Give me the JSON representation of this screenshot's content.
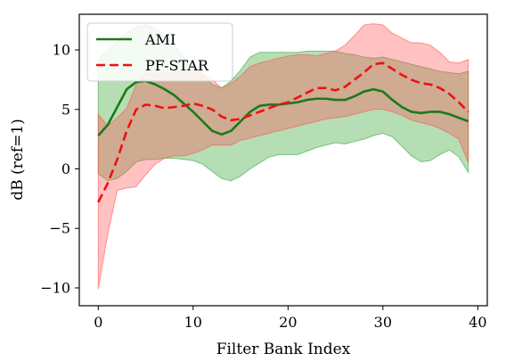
{
  "chart_data": {
    "type": "line",
    "xlabel": "Filter Bank Index",
    "ylabel": "dB (ref=1)",
    "xlim": [
      -2,
      41
    ],
    "ylim": [
      -11.5,
      13
    ],
    "xticks": [
      0,
      10,
      20,
      30,
      40
    ],
    "yticks": [
      -10,
      -5,
      0,
      5,
      10
    ],
    "grid": false,
    "legend_position": "top-left",
    "series": [
      {
        "name": "AMI",
        "color": "#1a7a1a",
        "fill_color": "#2ca02c",
        "style": "solid",
        "x": [
          0,
          1,
          2,
          3,
          4,
          5,
          6,
          7,
          8,
          9,
          10,
          11,
          12,
          13,
          14,
          15,
          16,
          17,
          18,
          19,
          20,
          21,
          22,
          23,
          24,
          25,
          26,
          27,
          28,
          29,
          30,
          31,
          32,
          33,
          34,
          35,
          36,
          37,
          38,
          39
        ],
        "mean": [
          2.8,
          3.7,
          5.2,
          6.7,
          7.3,
          7.4,
          7.1,
          6.7,
          6.2,
          5.5,
          4.8,
          4.0,
          3.2,
          2.9,
          3.2,
          4.0,
          4.8,
          5.3,
          5.4,
          5.4,
          5.5,
          5.6,
          5.8,
          5.9,
          5.9,
          5.8,
          5.8,
          6.1,
          6.5,
          6.7,
          6.5,
          5.8,
          5.2,
          4.8,
          4.7,
          4.8,
          4.8,
          4.6,
          4.3,
          4.0
        ],
        "upper": [
          9.2,
          10.0,
          10.7,
          11.4,
          11.9,
          12.1,
          11.8,
          11.1,
          10.4,
          9.4,
          8.5,
          7.9,
          7.1,
          6.8,
          7.4,
          8.3,
          9.4,
          9.8,
          9.8,
          9.8,
          9.8,
          9.8,
          9.9,
          9.9,
          9.9,
          9.9,
          9.7,
          9.6,
          9.4,
          9.3,
          9.4,
          9.2,
          9.0,
          8.8,
          8.6,
          8.4,
          8.2,
          8.1,
          8.0,
          8.2
        ],
        "lower": [
          -0.4,
          -1.0,
          -0.8,
          -0.2,
          0.6,
          0.8,
          0.8,
          0.9,
          0.9,
          0.8,
          0.7,
          0.4,
          -0.2,
          -0.8,
          -1.0,
          -0.6,
          0.0,
          0.5,
          1.0,
          1.2,
          1.2,
          1.2,
          1.5,
          1.8,
          2.0,
          2.2,
          2.1,
          2.3,
          2.5,
          2.8,
          3.0,
          2.7,
          1.9,
          1.1,
          0.6,
          0.7,
          1.2,
          1.6,
          1.0,
          -0.3
        ]
      },
      {
        "name": "PF-STAR",
        "color": "#ee1111",
        "fill_color": "#ff4d4d",
        "style": "dashed",
        "x": [
          0,
          1,
          2,
          3,
          4,
          5,
          6,
          7,
          8,
          9,
          10,
          11,
          12,
          13,
          14,
          15,
          16,
          17,
          18,
          19,
          20,
          21,
          22,
          23,
          24,
          25,
          26,
          27,
          28,
          29,
          30,
          31,
          32,
          33,
          34,
          35,
          36,
          37,
          38,
          39
        ],
        "mean": [
          -2.8,
          -1.2,
          0.8,
          3.2,
          5.0,
          5.4,
          5.3,
          5.1,
          5.2,
          5.3,
          5.5,
          5.3,
          5.0,
          4.4,
          4.1,
          4.2,
          4.5,
          4.8,
          5.1,
          5.4,
          5.6,
          6.0,
          6.4,
          6.8,
          6.8,
          6.6,
          6.9,
          7.5,
          8.1,
          8.8,
          8.9,
          8.4,
          7.9,
          7.5,
          7.2,
          7.1,
          6.8,
          6.3,
          5.6,
          4.8
        ],
        "upper": [
          4.6,
          3.6,
          4.3,
          5.1,
          7.1,
          8.0,
          8.0,
          8.0,
          8.1,
          8.2,
          8.5,
          8.0,
          7.5,
          6.8,
          7.2,
          7.8,
          8.6,
          8.9,
          9.1,
          9.3,
          9.5,
          9.6,
          9.6,
          9.5,
          9.7,
          9.9,
          10.4,
          11.2,
          12.1,
          12.2,
          12.1,
          11.4,
          11.0,
          10.6,
          10.6,
          10.4,
          9.8,
          9.0,
          8.9,
          9.2
        ],
        "lower": [
          -10.1,
          -5.5,
          -1.8,
          -1.6,
          -1.5,
          -0.5,
          0.4,
          0.9,
          1.1,
          1.1,
          1.3,
          1.6,
          2.0,
          2.0,
          2.0,
          2.4,
          2.6,
          2.8,
          3.0,
          3.2,
          3.4,
          3.6,
          3.8,
          4.0,
          4.2,
          4.3,
          4.4,
          4.6,
          4.8,
          5.0,
          5.0,
          4.8,
          4.5,
          4.1,
          3.9,
          3.7,
          3.4,
          3.0,
          2.5,
          0.5
        ]
      }
    ]
  }
}
